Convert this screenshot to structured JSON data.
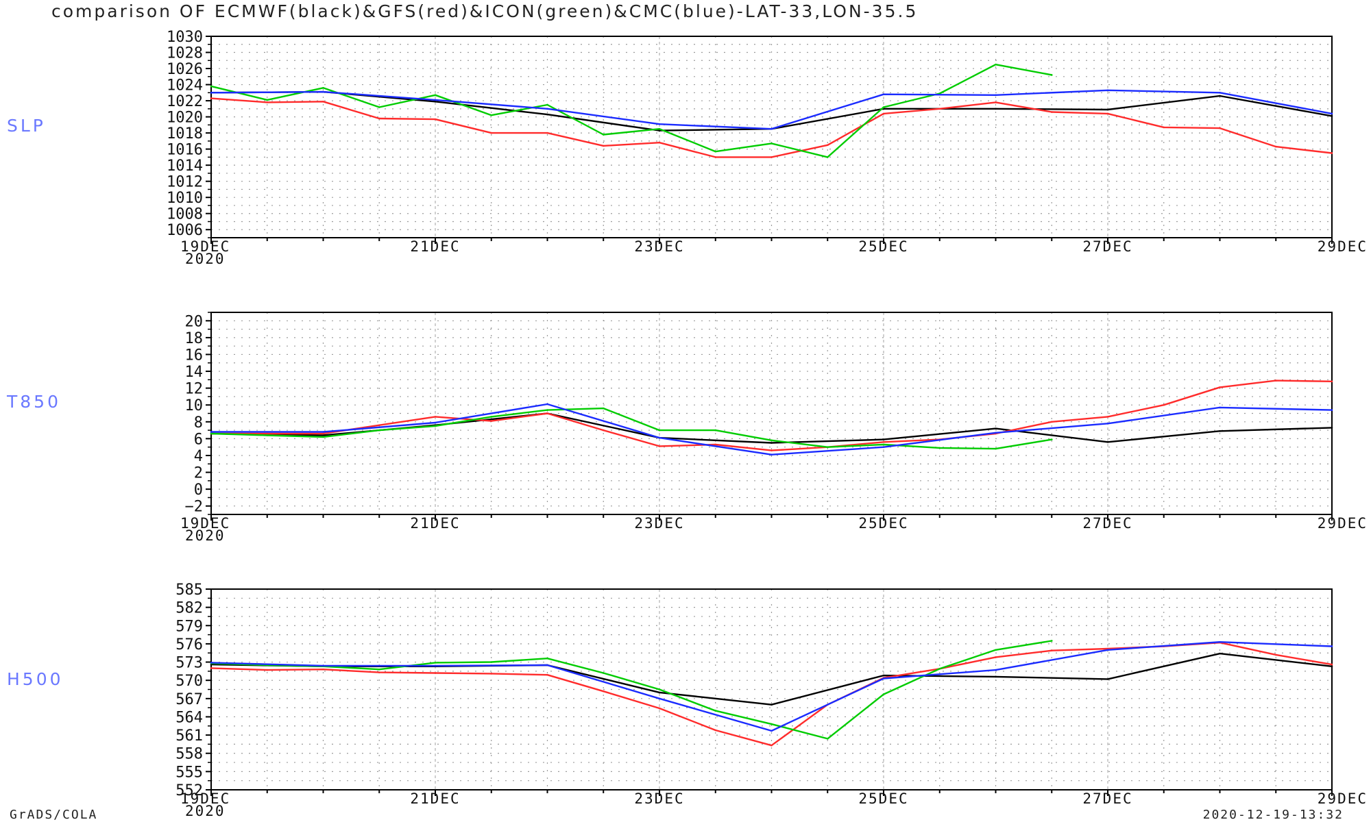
{
  "header": {
    "title": "comparison OF ECMWF(black)&GFS(red)&ICON(green)&CMC(blue)-LAT-33,LON-35.5"
  },
  "footer": {
    "left": "GrADS/COLA",
    "right": "2020-12-19-13:32"
  },
  "colors": {
    "ECMWF": "#000000",
    "GFS": "#ff2b2b",
    "ICON": "#00cc00",
    "CMC": "#1a2bff",
    "panel_label": "#6a78ff",
    "grid": "#9a9a9a"
  },
  "chart_data": [
    {
      "type": "line",
      "panel_label": "SLP",
      "x_ticks": [
        "19DEC",
        "21DEC",
        "23DEC",
        "25DEC",
        "27DEC",
        "29DEC"
      ],
      "x_year_label": "2020",
      "x_range": [
        0,
        10
      ],
      "x_unit": "days from 19DEC",
      "ylim": [
        1005,
        1030
      ],
      "y_ticks": [
        1006,
        1008,
        1010,
        1012,
        1014,
        1016,
        1018,
        1020,
        1022,
        1024,
        1026,
        1028,
        1030
      ],
      "grid": true,
      "series": [
        {
          "name": "ECMWF",
          "color": "#000000",
          "x": [
            0,
            1,
            2,
            3,
            4,
            5,
            6,
            7,
            8,
            9,
            10
          ],
          "values": [
            1023.0,
            1023.1,
            1021.9,
            1020.3,
            1018.3,
            1018.5,
            1021.0,
            1021.0,
            1020.9,
            1022.6,
            1020.1
          ]
        },
        {
          "name": "GFS",
          "color": "#ff2b2b",
          "x": [
            0,
            0.5,
            1,
            1.5,
            2,
            2.5,
            3,
            3.5,
            4,
            4.5,
            5,
            5.5,
            6,
            6.5,
            7,
            7.5,
            8,
            8.5,
            9,
            9.5,
            10
          ],
          "values": [
            1022.3,
            1021.8,
            1021.9,
            1019.8,
            1019.7,
            1018.0,
            1018.0,
            1016.4,
            1016.8,
            1015.0,
            1015.0,
            1016.5,
            1020.4,
            1021.0,
            1021.8,
            1020.6,
            1020.4,
            1018.7,
            1018.6,
            1016.3,
            1015.5
          ]
        },
        {
          "name": "ICON",
          "color": "#00cc00",
          "x": [
            0,
            0.5,
            1,
            1.5,
            2,
            2.5,
            3,
            3.5,
            4,
            4.5,
            5,
            5.5,
            6,
            6.5,
            7,
            7.5
          ],
          "values": [
            1023.8,
            1022.1,
            1023.6,
            1021.2,
            1022.7,
            1020.2,
            1021.5,
            1017.8,
            1018.5,
            1015.7,
            1016.7,
            1015.0,
            1021.2,
            1022.9,
            1026.5,
            1025.2
          ]
        },
        {
          "name": "CMC",
          "color": "#1a2bff",
          "x": [
            0,
            1,
            2,
            3,
            4,
            5,
            6,
            7,
            8,
            9,
            10
          ],
          "values": [
            1023.0,
            1023.1,
            1022.1,
            1021.0,
            1019.1,
            1018.5,
            1022.8,
            1022.7,
            1023.3,
            1023.0,
            1020.4
          ]
        }
      ]
    },
    {
      "type": "line",
      "panel_label": "T850",
      "x_ticks": [
        "19DEC",
        "21DEC",
        "23DEC",
        "25DEC",
        "27DEC",
        "29DEC"
      ],
      "x_year_label": "2020",
      "x_range": [
        0,
        10
      ],
      "x_unit": "days from 19DEC",
      "ylim": [
        -3,
        21
      ],
      "y_ticks": [
        -2,
        0,
        2,
        4,
        6,
        8,
        10,
        12,
        14,
        16,
        18,
        20
      ],
      "grid": true,
      "series": [
        {
          "name": "ECMWF",
          "color": "#000000",
          "x": [
            0,
            1,
            2,
            3,
            4,
            5,
            6,
            7,
            8,
            9,
            10
          ],
          "values": [
            6.6,
            6.4,
            7.6,
            9.0,
            6.1,
            5.5,
            5.9,
            7.2,
            5.6,
            6.9,
            7.3
          ]
        },
        {
          "name": "GFS",
          "color": "#ff2b2b",
          "x": [
            0,
            0.5,
            1,
            1.5,
            2,
            2.5,
            3,
            3.5,
            4,
            4.5,
            5,
            5.5,
            6,
            6.5,
            7,
            7.5,
            8,
            8.5,
            9,
            9.5,
            10
          ],
          "values": [
            6.6,
            6.6,
            6.6,
            7.6,
            8.6,
            8.1,
            9.0,
            7.0,
            5.1,
            5.3,
            4.6,
            5.0,
            5.6,
            5.9,
            6.6,
            8.0,
            8.6,
            10.0,
            12.1,
            12.9,
            12.8
          ]
        },
        {
          "name": "ICON",
          "color": "#00cc00",
          "x": [
            0,
            0.5,
            1,
            1.5,
            2,
            2.5,
            3,
            3.5,
            4,
            4.5,
            5,
            5.5,
            6,
            6.5,
            7,
            7.5
          ],
          "values": [
            6.6,
            6.4,
            6.2,
            7.0,
            7.5,
            8.6,
            9.4,
            9.6,
            7.0,
            7.0,
            5.8,
            5.0,
            5.3,
            4.9,
            4.8,
            5.9
          ]
        },
        {
          "name": "CMC",
          "color": "#1a2bff",
          "x": [
            0,
            1,
            2,
            3,
            4,
            5,
            6,
            7,
            8,
            9,
            10
          ],
          "values": [
            6.8,
            6.8,
            7.9,
            10.1,
            6.1,
            4.1,
            5.0,
            6.7,
            7.8,
            9.7,
            9.4
          ]
        }
      ]
    },
    {
      "type": "line",
      "panel_label": "H500",
      "x_ticks": [
        "19DEC",
        "21DEC",
        "23DEC",
        "25DEC",
        "27DEC",
        "29DEC"
      ],
      "x_year_label": "2020",
      "x_range": [
        0,
        10
      ],
      "x_unit": "days from 19DEC",
      "ylim": [
        552,
        585
      ],
      "y_ticks": [
        552,
        555,
        558,
        561,
        564,
        567,
        570,
        573,
        576,
        579,
        582,
        585
      ],
      "grid": true,
      "series": [
        {
          "name": "ECMWF",
          "color": "#000000",
          "x": [
            0,
            1,
            2,
            3,
            4,
            5,
            6,
            7,
            8,
            9,
            10
          ],
          "values": [
            572.6,
            572.3,
            572.3,
            572.5,
            568.0,
            566.0,
            570.8,
            570.6,
            570.2,
            574.4,
            572.3
          ]
        },
        {
          "name": "GFS",
          "color": "#ff2b2b",
          "x": [
            0,
            0.5,
            1,
            1.5,
            2,
            2.5,
            3,
            3.5,
            4,
            4.5,
            5,
            5.5,
            6,
            6.5,
            7,
            7.5,
            8,
            8.5,
            9,
            9.5,
            10
          ],
          "values": [
            572.0,
            571.7,
            571.8,
            571.3,
            571.2,
            571.1,
            570.9,
            568.2,
            565.4,
            561.8,
            559.3,
            566.0,
            570.4,
            571.9,
            573.8,
            574.9,
            575.2,
            575.6,
            576.2,
            574.2,
            572.6
          ]
        },
        {
          "name": "ICON",
          "color": "#00cc00",
          "x": [
            0,
            0.5,
            1,
            1.5,
            2,
            2.5,
            3,
            3.5,
            4,
            4.5,
            5,
            5.5,
            6,
            6.5,
            7,
            7.5
          ],
          "values": [
            572.8,
            572.5,
            572.3,
            571.8,
            572.9,
            573.0,
            573.6,
            571.2,
            568.5,
            565.0,
            562.8,
            560.4,
            567.7,
            571.9,
            575.0,
            576.5
          ]
        },
        {
          "name": "CMC",
          "color": "#1a2bff",
          "x": [
            0,
            1,
            2,
            3,
            4,
            5,
            6,
            7,
            8,
            9,
            10
          ],
          "values": [
            572.9,
            572.4,
            572.4,
            572.5,
            567.0,
            561.7,
            570.3,
            571.7,
            575.0,
            576.3,
            575.6
          ]
        }
      ]
    }
  ]
}
